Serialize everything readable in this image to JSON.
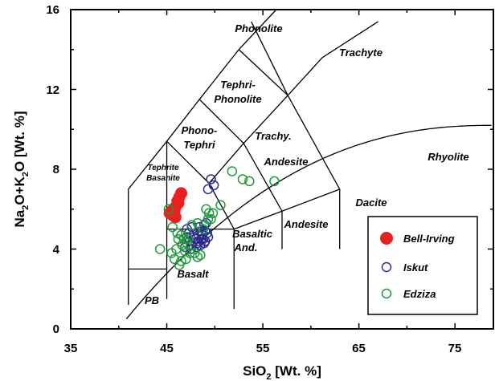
{
  "chart_data": {
    "type": "scatter",
    "xlabel_main": "SiO",
    "xlabel_sub": "2",
    "xlabel_rest": " [Wt. %]",
    "ylabel_parts": [
      "Na",
      "2",
      "O+K",
      "2",
      "O [Wt. %]"
    ],
    "xlim": [
      35,
      79
    ],
    "ylim": [
      0,
      16
    ],
    "x_ticks": [
      35,
      45,
      55,
      65,
      75
    ],
    "y_ticks": [
      0,
      4,
      8,
      12,
      16
    ],
    "legend_placement": "lower-right",
    "field_labels": {
      "phonolite": "Phonolite",
      "trachyte": "Trachyte",
      "tephri_phonolite_1": "Tephri-",
      "tephri_phonolite_2": "Phonolite",
      "phono_tephri_1": "Phono-",
      "phono_tephri_2": "Tephri",
      "trachy": "Trachy.",
      "andesite_upper": "Andesite",
      "andesite_lower": "Andesite",
      "rhyolite": "Rhyolite",
      "dacite": "Dacite",
      "tephrite_1": "Tephrite",
      "tephrite_2": "Basanite",
      "basaltic_1": "Basaltic",
      "basaltic_2": "And.",
      "basalt": "Basalt",
      "pb": "PB"
    },
    "series": [
      {
        "name": "Bell-Irving",
        "color": "#e8201f",
        "marker": "filled-circle",
        "points": [
          [
            46.1,
            6.4
          ],
          [
            46.3,
            6.6
          ],
          [
            46.5,
            6.8
          ],
          [
            45.9,
            6.1
          ],
          [
            46.2,
            6.3
          ],
          [
            45.5,
            5.9
          ],
          [
            45.8,
            5.9
          ],
          [
            45.3,
            5.8
          ],
          [
            45.6,
            5.7
          ],
          [
            45.9,
            5.6
          ],
          [
            45.4,
            5.8
          ],
          [
            45.7,
            6.0
          ]
        ]
      },
      {
        "name": "Iskut",
        "color": "#2b2b8f",
        "marker": "open-circle",
        "points": [
          [
            49.6,
            7.5
          ],
          [
            49.9,
            7.2
          ],
          [
            49.3,
            7.0
          ],
          [
            47.1,
            5.0
          ],
          [
            47.6,
            5.1
          ],
          [
            48.4,
            5.1
          ],
          [
            48.9,
            5.2
          ],
          [
            49.1,
            5.3
          ],
          [
            47.3,
            4.8
          ],
          [
            48.6,
            4.9
          ],
          [
            49.0,
            4.9
          ],
          [
            47.1,
            4.6
          ],
          [
            47.8,
            4.6
          ],
          [
            48.3,
            4.7
          ],
          [
            48.7,
            4.7
          ],
          [
            49.2,
            4.8
          ],
          [
            47.4,
            4.4
          ],
          [
            48.0,
            4.5
          ],
          [
            48.6,
            4.5
          ],
          [
            49.3,
            4.6
          ],
          [
            47.6,
            4.2
          ],
          [
            48.2,
            4.3
          ],
          [
            48.9,
            4.3
          ],
          [
            46.9,
            4.1
          ],
          [
            47.5,
            4.0
          ],
          [
            48.1,
            4.1
          ],
          [
            48.5,
            4.2
          ],
          [
            49.0,
            4.4
          ],
          [
            48.3,
            4.4
          ],
          [
            48.8,
            4.5
          ]
        ]
      },
      {
        "name": "Edziza",
        "color": "#1f9a3c",
        "marker": "open-circle",
        "points": [
          [
            51.8,
            7.9
          ],
          [
            52.9,
            7.5
          ],
          [
            53.6,
            7.4
          ],
          [
            56.2,
            7.4
          ],
          [
            50.6,
            6.2
          ],
          [
            49.1,
            6.0
          ],
          [
            49.4,
            5.8
          ],
          [
            49.8,
            5.8
          ],
          [
            49.3,
            5.5
          ],
          [
            49.6,
            5.5
          ],
          [
            47.6,
            5.2
          ],
          [
            48.2,
            5.3
          ],
          [
            48.8,
            5.0
          ],
          [
            45.2,
            6.0
          ],
          [
            45.6,
            5.1
          ],
          [
            46.1,
            4.8
          ],
          [
            46.5,
            4.7
          ],
          [
            46.8,
            4.5
          ],
          [
            47.1,
            4.3
          ],
          [
            46.2,
            4.5
          ],
          [
            46.6,
            4.2
          ],
          [
            46.0,
            4.0
          ],
          [
            45.5,
            3.8
          ],
          [
            46.9,
            3.9
          ],
          [
            47.4,
            3.8
          ],
          [
            47.9,
            3.8
          ],
          [
            48.5,
            3.7
          ],
          [
            45.8,
            3.5
          ],
          [
            46.5,
            3.4
          ],
          [
            47.0,
            3.5
          ],
          [
            48.2,
            3.6
          ],
          [
            46.3,
            3.2
          ],
          [
            44.3,
            4.0
          ],
          [
            47.2,
            4.5
          ]
        ]
      }
    ]
  }
}
